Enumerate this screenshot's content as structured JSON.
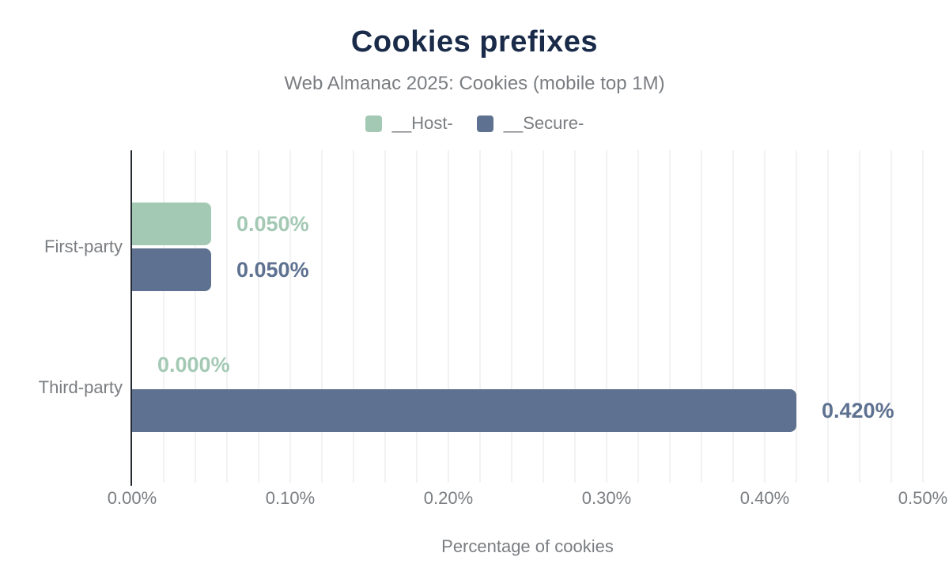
{
  "colors": {
    "title": "#1a2b49",
    "muted_text": "#7a7d81",
    "host_green": "#a3c9b4",
    "secure_blue": "#5e7190",
    "axis_line": "#262b33",
    "gridline": "#f2f2f2",
    "background": "#ffffff"
  },
  "chart_data": {
    "type": "bar",
    "orientation": "horizontal",
    "title": "Cookies prefixes",
    "subtitle": "Web Almanac 2025: Cookies (mobile top 1M)",
    "xlabel": "Percentage of cookies",
    "categories": [
      "First-party",
      "Third-party"
    ],
    "series": [
      {
        "name": "__Host-",
        "color": "#a3c9b4",
        "values": [
          0.05,
          0.0
        ],
        "labels": [
          "0.050%",
          "0.000%"
        ]
      },
      {
        "name": "__Secure-",
        "color": "#5e7190",
        "values": [
          0.05,
          0.42
        ],
        "labels": [
          "0.050%",
          "0.420%"
        ]
      }
    ],
    "xlim": [
      0,
      0.5
    ],
    "x_ticks": [
      "0.00%",
      "0.10%",
      "0.20%",
      "0.30%",
      "0.40%",
      "0.50%"
    ],
    "minor_grid_step_pct": 0.02,
    "grid": true,
    "legend_position": "top"
  }
}
